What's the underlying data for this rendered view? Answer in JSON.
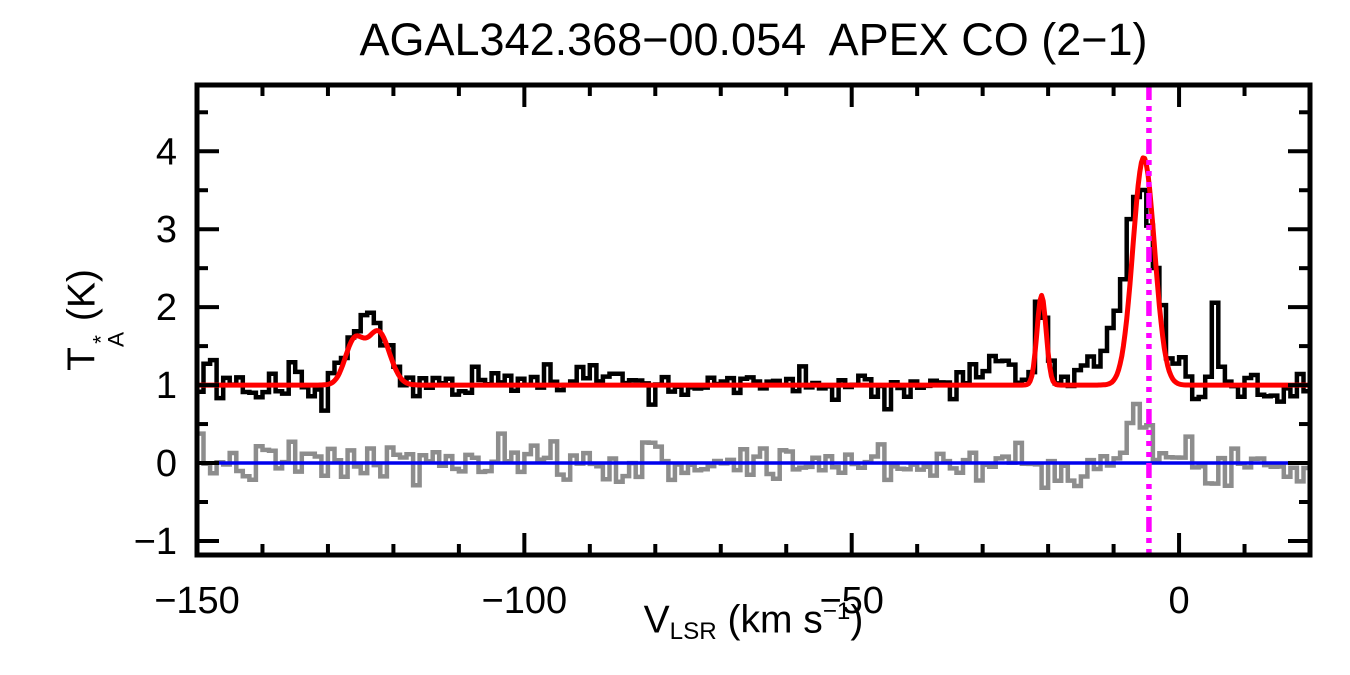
{
  "title": "AGAL342.368−00.054  APEX CO (2−1)",
  "axes": {
    "x_label": {
      "prefix": "V",
      "sub": "LSR",
      "mid": " (km s",
      "sup": "−1",
      "suffix": ")"
    },
    "y_label": {
      "prefix": "T",
      "sup": "*",
      "sub": "A",
      "suffix": " (K)"
    }
  },
  "chart_data": {
    "type": "line",
    "title": "AGAL342.368−00.054 APEX CO (2−1)",
    "xlabel": "V_LSR (km s−1)",
    "ylabel": "T*_A (K)",
    "xlim": [
      -150,
      20
    ],
    "ylim": [
      -1.18,
      4.85
    ],
    "x_major_ticks": [
      {
        "v": -150,
        "label": "−150"
      },
      {
        "v": -100,
        "label": "−100"
      },
      {
        "v": -50,
        "label": "−50"
      },
      {
        "v": 0,
        "label": "0"
      }
    ],
    "x_minor_step": 10,
    "y_major_ticks": [
      {
        "v": -1,
        "label": "−1"
      },
      {
        "v": 0,
        "label": "0"
      },
      {
        "v": 1,
        "label": "1"
      },
      {
        "v": 2,
        "label": "2"
      },
      {
        "v": 3,
        "label": "3"
      },
      {
        "v": 4,
        "label": "4"
      }
    ],
    "y_minor_step": 0.5,
    "grid": false,
    "legend": "none",
    "channel_width_kms": 1.0,
    "series": [
      {
        "name": "observed CO(2-1) spectrum",
        "role": "data",
        "color": "#000000",
        "style": "histogram",
        "line_width": 4.5,
        "baseline_K": 1.0,
        "noise_sigma_K": 0.125,
        "noise_seed": 13,
        "components": [
          {
            "center_kms": -126.0,
            "amplitude_K": 0.55,
            "sigma_kms": 1.6
          },
          {
            "center_kms": -122.3,
            "amplitude_K": 0.75,
            "sigma_kms": 1.8
          },
          {
            "center_kms": -27.5,
            "amplitude_K": 0.25,
            "sigma_kms": 2.0
          },
          {
            "center_kms": -21.0,
            "amplitude_K": 1.25,
            "sigma_kms": 0.8
          },
          {
            "center_kms": -9.5,
            "amplitude_K": 0.55,
            "sigma_kms": 2.6
          },
          {
            "center_kms": -5.6,
            "amplitude_K": 2.35,
            "sigma_kms": 2.1
          },
          {
            "center_kms": 5.6,
            "amplitude_K": 1.2,
            "sigma_kms": 0.45
          }
        ]
      },
      {
        "name": "Gaussian fit",
        "role": "fit",
        "color": "#ff0000",
        "style": "smooth",
        "line_width": 5,
        "baseline_K": 1.0,
        "noise_sigma_K": 0,
        "components": [
          {
            "center_kms": -126.0,
            "amplitude_K": 0.55,
            "sigma_kms": 1.4
          },
          {
            "center_kms": -122.3,
            "amplitude_K": 0.68,
            "sigma_kms": 1.7
          },
          {
            "center_kms": -21.0,
            "amplitude_K": 1.15,
            "sigma_kms": 0.7
          },
          {
            "center_kms": -5.4,
            "amplitude_K": 2.92,
            "sigma_kms": 1.65
          }
        ]
      },
      {
        "name": "fit residual",
        "role": "residual",
        "color": "#8d8d8d",
        "style": "histogram",
        "line_width": 4.5,
        "baseline_K": 0.0,
        "noise_sigma_K": 0.14,
        "noise_seed": 7,
        "components": [
          {
            "center_kms": -6.0,
            "amplitude_K": 0.48,
            "sigma_kms": 1.8
          }
        ]
      }
    ],
    "reference_lines": {
      "zero_line": {
        "orientation": "horizontal",
        "y_K": 0,
        "color": "#0000ee",
        "line_width": 3.5
      },
      "vlsr_marker": {
        "orientation": "vertical",
        "x_kms": -4.6,
        "color": "#ff00ff",
        "line_width": 5.5,
        "style": "dash-dot-dot-dot"
      }
    },
    "peaks_readout": [
      {
        "v_kms": -126.0,
        "T_K": 1.55
      },
      {
        "v_kms": -122.3,
        "T_K": 1.7
      },
      {
        "v_kms": -21.0,
        "T_K": 2.15
      },
      {
        "v_kms": -5.4,
        "T_K": 3.9
      },
      {
        "v_kms": 5.6,
        "T_K": 2.2
      }
    ]
  }
}
